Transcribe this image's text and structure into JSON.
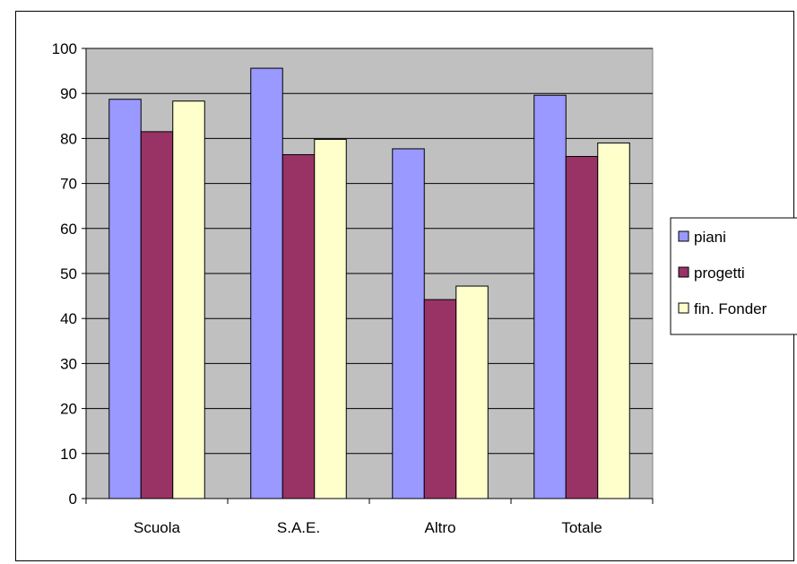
{
  "chart_data": {
    "type": "bar",
    "title": "",
    "xlabel": "",
    "ylabel": "",
    "categories": [
      "Scuola",
      "S.A.E.",
      "Altro",
      "Totale"
    ],
    "ylim": [
      0,
      100
    ],
    "yticks": [
      0,
      10,
      20,
      30,
      40,
      50,
      60,
      70,
      80,
      90,
      100
    ],
    "grid": true,
    "plot_background": "#c0c0c0",
    "legend_position": "right",
    "series": [
      {
        "name": "piani",
        "color": "#9999ff",
        "values": [
          88.7,
          95.6,
          77.7,
          89.6
        ]
      },
      {
        "name": "progetti",
        "color": "#993366",
        "values": [
          81.5,
          76.4,
          44.2,
          76.0
        ]
      },
      {
        "name": "fin. Fonder",
        "color": "#ffffcc",
        "values": [
          88.3,
          79.8,
          47.2,
          79.0
        ]
      }
    ]
  }
}
